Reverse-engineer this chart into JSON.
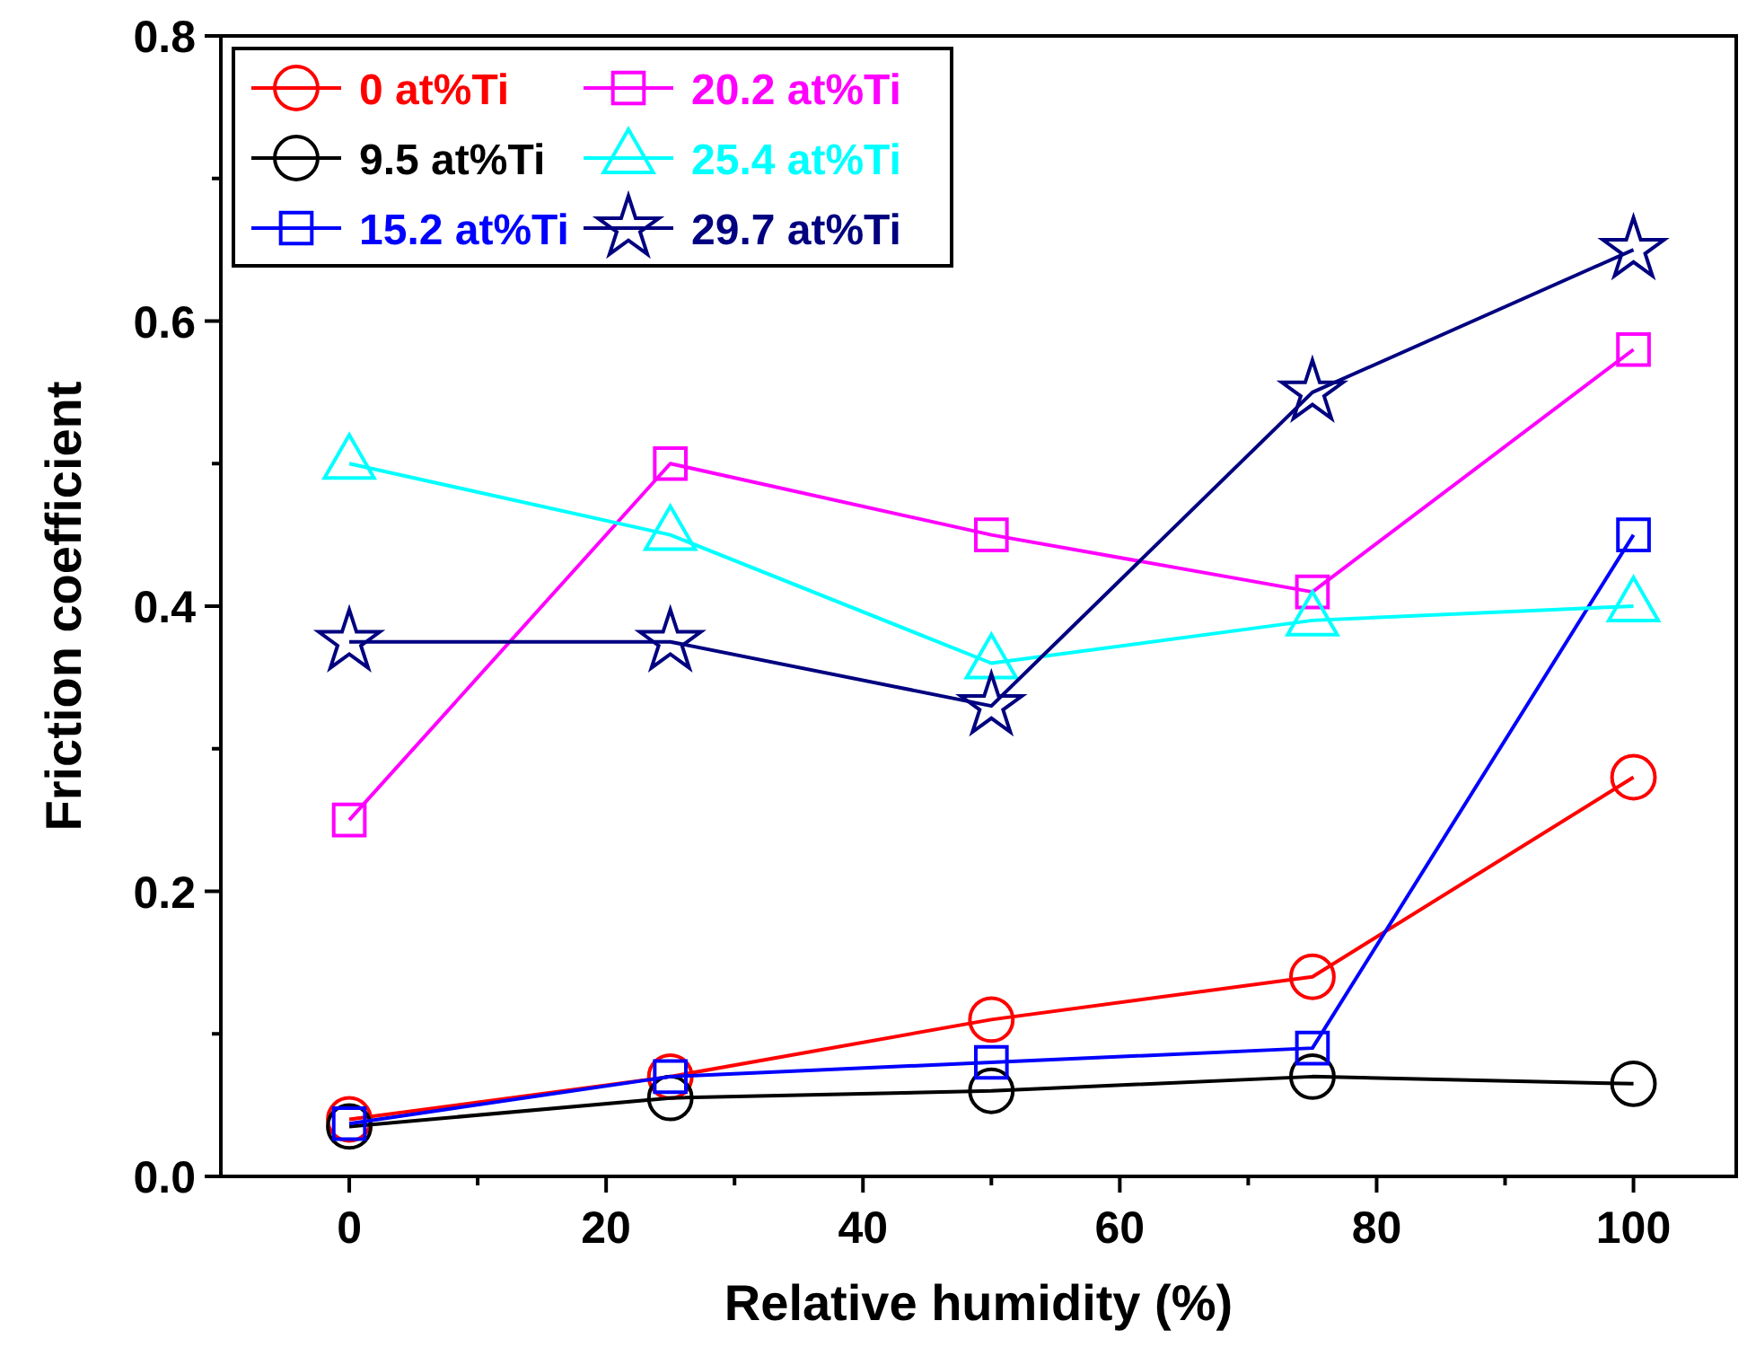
{
  "chart_data": {
    "type": "line",
    "xlabel": "Relative humidity (%)",
    "ylabel": "Friction coefficient",
    "x": [
      0,
      25,
      50,
      75,
      100
    ],
    "xlim": [
      -10,
      108
    ],
    "xticks": [
      0,
      {
        "value": 10,
        "label": null
      },
      20,
      {
        "value": 30,
        "label": null
      },
      40,
      {
        "value": 50,
        "label": null
      },
      60,
      {
        "value": 70,
        "label": null
      },
      80,
      {
        "value": 90,
        "label": null
      },
      100
    ],
    "ylim": [
      0,
      0.8
    ],
    "yticks": [
      {
        "value": 0,
        "label": "0.0"
      },
      {
        "value": 0.1,
        "label": null
      },
      {
        "value": 0.2,
        "label": "0.2"
      },
      {
        "value": 0.3,
        "label": null
      },
      {
        "value": 0.4,
        "label": "0.4"
      },
      {
        "value": 0.5,
        "label": null
      },
      {
        "value": 0.6,
        "label": "0.6"
      },
      {
        "value": 0.7,
        "label": null
      },
      {
        "value": 0.8,
        "label": "0.8"
      }
    ],
    "grid": false,
    "legend": "top left",
    "line_style": "solid",
    "series": [
      {
        "name": "0 at%Ti",
        "color": "#ff0000",
        "marker": "circle",
        "values": [
          0.04,
          0.07,
          0.11,
          0.14,
          0.28
        ]
      },
      {
        "name": "9.5 at%Ti",
        "color": "#000000",
        "marker": "circle",
        "values": [
          0.035,
          0.055,
          0.06,
          0.07,
          0.065
        ]
      },
      {
        "name": "15.2 at%Ti",
        "color": "#0000ff",
        "marker": "square",
        "values": [
          0.037,
          0.07,
          0.08,
          0.09,
          0.45
        ]
      },
      {
        "name": "20.2 at%Ti",
        "color": "#ff00ff",
        "marker": "square",
        "values": [
          0.25,
          0.5,
          0.45,
          0.41,
          0.58
        ]
      },
      {
        "name": "25.4 at%Ti",
        "color": "#00ffff",
        "marker": "triangle",
        "values": [
          0.5,
          0.45,
          0.36,
          0.39,
          0.4
        ]
      },
      {
        "name": "29.7 at%Ti",
        "color": "#000080",
        "marker": "star",
        "values": [
          0.375,
          0.375,
          0.33,
          0.55,
          0.65
        ]
      }
    ]
  }
}
